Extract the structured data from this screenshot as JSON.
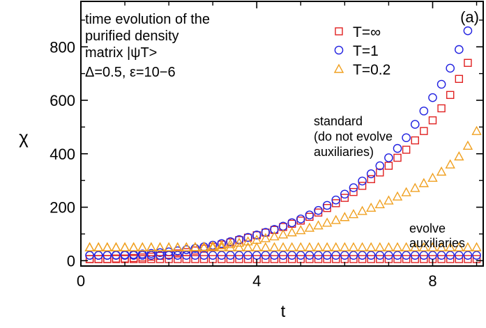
{
  "chart_data": {
    "type": "scatter",
    "panel_label": "(a)",
    "xlabel": "t",
    "ylabel": "χ",
    "xlim": [
      0,
      9.15
    ],
    "ylim": [
      -20,
      970
    ],
    "x_ticks": [
      0,
      4,
      8
    ],
    "x_tick_labels": [
      "0",
      "4",
      "8"
    ],
    "x_minor_step": 1,
    "y_ticks": [
      0,
      200,
      400,
      600,
      800
    ],
    "y_tick_labels": [
      "0",
      "200",
      "400",
      "600",
      "800"
    ],
    "y_minor_step": 100,
    "grid": false,
    "legend_position": "top-right",
    "annotations": {
      "info_lines": [
        "time evolution of the",
        "purified density",
        "matrix |ψT>",
        "Δ=0.5, ε=10−6"
      ],
      "standard_lines": [
        "standard",
        "(do not evolve",
        "auxiliaries)"
      ],
      "evolve_lines": [
        "evolve",
        "auxiliaries"
      ]
    },
    "series": [
      {
        "name": "T=∞",
        "group": "standard",
        "marker": "square",
        "color": "#e02020",
        "x": [
          0.2,
          0.4,
          0.6,
          0.8,
          1.0,
          1.2,
          1.4,
          1.6,
          1.8,
          2.0,
          2.2,
          2.4,
          2.6,
          2.8,
          3.0,
          3.2,
          3.4,
          3.6,
          3.8,
          4.0,
          4.2,
          4.4,
          4.6,
          4.8,
          5.0,
          5.2,
          5.4,
          5.6,
          5.8,
          6.0,
          6.2,
          6.4,
          6.6,
          6.8,
          7.0,
          7.2,
          7.4,
          7.6,
          7.8,
          8.0,
          8.2,
          8.4,
          8.6,
          8.8
        ],
        "y": [
          6,
          6,
          6,
          8,
          8,
          10,
          12,
          15,
          18,
          22,
          27,
          32,
          38,
          45,
          52,
          60,
          68,
          77,
          86,
          95,
          105,
          115,
          126,
          138,
          150,
          164,
          180,
          197,
          215,
          235,
          257,
          280,
          305,
          330,
          355,
          385,
          415,
          450,
          485,
          525,
          570,
          620,
          680,
          740
        ]
      },
      {
        "name": "T=1",
        "group": "standard",
        "marker": "circle",
        "color": "#2020e0",
        "x": [
          0.2,
          0.4,
          0.6,
          0.8,
          1.0,
          1.2,
          1.4,
          1.6,
          1.8,
          2.0,
          2.2,
          2.4,
          2.6,
          2.8,
          3.0,
          3.2,
          3.4,
          3.6,
          3.8,
          4.0,
          4.2,
          4.4,
          4.6,
          4.8,
          5.0,
          5.2,
          5.4,
          5.6,
          5.8,
          6.0,
          6.2,
          6.4,
          6.6,
          6.8,
          7.0,
          7.2,
          7.4,
          7.6,
          7.8,
          8.0,
          8.2,
          8.4,
          8.6,
          8.8
        ],
        "y": [
          20,
          20,
          20,
          21,
          22,
          23,
          25,
          27,
          30,
          33,
          37,
          41,
          46,
          52,
          58,
          64,
          71,
          79,
          87,
          96,
          106,
          117,
          129,
          142,
          156,
          171,
          188,
          207,
          227,
          249,
          273,
          298,
          325,
          355,
          385,
          420,
          460,
          510,
          560,
          610,
          660,
          720,
          790,
          860
        ]
      },
      {
        "name": "T=0.2",
        "group": "standard",
        "marker": "triangle",
        "color": "#f0a020",
        "x": [
          0.2,
          0.4,
          0.6,
          0.8,
          1.0,
          1.2,
          1.4,
          1.6,
          1.8,
          2.0,
          2.2,
          2.4,
          2.6,
          2.8,
          3.0,
          3.2,
          3.4,
          3.6,
          3.8,
          4.0,
          4.2,
          4.4,
          4.6,
          4.8,
          5.0,
          5.2,
          5.4,
          5.6,
          5.8,
          6.0,
          6.2,
          6.4,
          6.6,
          6.8,
          7.0,
          7.2,
          7.4,
          7.6,
          7.8,
          8.0,
          8.2,
          8.4,
          8.6,
          8.8,
          9.0
        ],
        "y": [
          50,
          50,
          50,
          50,
          50,
          50,
          50,
          50,
          50,
          50,
          50,
          50,
          51,
          52,
          55,
          58,
          62,
          67,
          72,
          78,
          84,
          91,
          98,
          106,
          114,
          123,
          132,
          142,
          152,
          163,
          174,
          186,
          198,
          211,
          225,
          240,
          256,
          272,
          290,
          310,
          333,
          360,
          390,
          430,
          485
        ]
      },
      {
        "name": "T=∞ (evolve auxiliaries)",
        "group": "evolve",
        "marker": "square",
        "color": "#e02020",
        "x": [
          0.2,
          0.4,
          0.6,
          0.8,
          1.0,
          1.2,
          1.4,
          1.6,
          1.8,
          2.0,
          2.2,
          2.4,
          2.6,
          2.8,
          3.0,
          3.2,
          3.4,
          3.6,
          3.8,
          4.0,
          4.2,
          4.4,
          4.6,
          4.8,
          5.0,
          5.2,
          5.4,
          5.6,
          5.8,
          6.0,
          6.2,
          6.4,
          6.6,
          6.8,
          7.0,
          7.2,
          7.4,
          7.6,
          7.8,
          8.0,
          8.2,
          8.4,
          8.6,
          8.8,
          9.0
        ],
        "y": [
          6,
          6,
          6,
          6,
          6,
          6,
          6,
          6,
          6,
          6,
          6,
          6,
          6,
          6,
          6,
          6,
          6,
          6,
          6,
          6,
          6,
          6,
          6,
          6,
          6,
          6,
          6,
          6,
          6,
          6,
          6,
          6,
          6,
          6,
          6,
          6,
          6,
          6,
          6,
          6,
          6,
          6,
          6,
          6,
          6
        ]
      },
      {
        "name": "T=1 (evolve auxiliaries)",
        "group": "evolve",
        "marker": "circle",
        "color": "#2020e0",
        "x": [
          0.2,
          0.4,
          0.6,
          0.8,
          1.0,
          1.2,
          1.4,
          1.6,
          1.8,
          2.0,
          2.2,
          2.4,
          2.6,
          2.8,
          3.0,
          3.2,
          3.4,
          3.6,
          3.8,
          4.0,
          4.2,
          4.4,
          4.6,
          4.8,
          5.0,
          5.2,
          5.4,
          5.6,
          5.8,
          6.0,
          6.2,
          6.4,
          6.6,
          6.8,
          7.0,
          7.2,
          7.4,
          7.6,
          7.8,
          8.0,
          8.2,
          8.4,
          8.6,
          8.8,
          9.0
        ],
        "y": [
          20,
          20,
          20,
          20,
          20,
          20,
          20,
          20,
          20,
          20,
          20,
          20,
          20,
          20,
          20,
          20,
          20,
          20,
          20,
          20,
          20,
          20,
          20,
          20,
          20,
          20,
          20,
          20,
          20,
          20,
          20,
          20,
          20,
          20,
          20,
          20,
          20,
          20,
          20,
          20,
          20,
          20,
          20,
          20,
          20
        ]
      },
      {
        "name": "T=0.2 (evolve auxiliaries)",
        "group": "evolve",
        "marker": "triangle",
        "color": "#f0a020",
        "x": [
          0.2,
          0.4,
          0.6,
          0.8,
          1.0,
          1.2,
          1.4,
          1.6,
          1.8,
          2.0,
          2.2,
          2.4,
          2.6,
          2.8,
          3.0,
          3.2,
          3.4,
          3.6,
          3.8,
          4.0,
          4.2,
          4.4,
          4.6,
          4.8,
          5.0,
          5.2,
          5.4,
          5.6,
          5.8,
          6.0,
          6.2,
          6.4,
          6.6,
          6.8,
          7.0,
          7.2,
          7.4,
          7.6,
          7.8,
          8.0,
          8.2,
          8.4,
          8.6,
          8.8,
          9.0
        ],
        "y": [
          50,
          50,
          50,
          50,
          50,
          50,
          50,
          50,
          50,
          50,
          50,
          50,
          50,
          50,
          50,
          50,
          50,
          50,
          50,
          50,
          50,
          50,
          50,
          50,
          50,
          50,
          50,
          50,
          50,
          50,
          50,
          50,
          50,
          50,
          50,
          50,
          50,
          50,
          50,
          50,
          50,
          50,
          50,
          50,
          50
        ]
      }
    ]
  }
}
